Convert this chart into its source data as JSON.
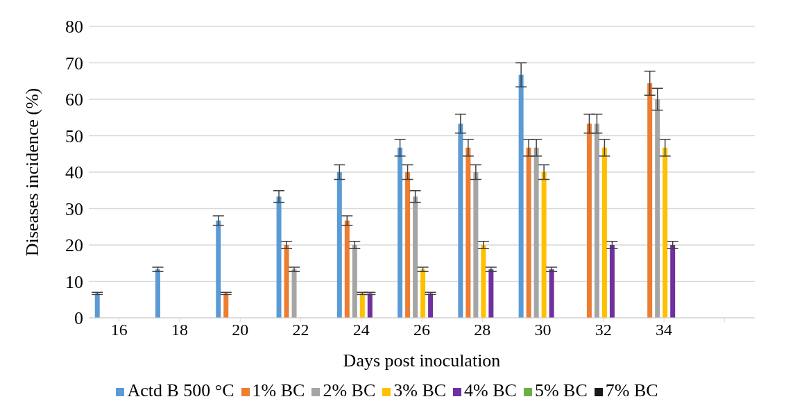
{
  "chart_data": {
    "type": "bar",
    "xlabel": "Days post inoculation",
    "ylabel": "Diseases incidence (%)",
    "categories": [
      "16",
      "18",
      "20",
      "22",
      "24",
      "26",
      "28",
      "30",
      "32",
      "34",
      null
    ],
    "series": [
      {
        "name": "Actd B 500 °C",
        "color": "#5b9bd5",
        "values": [
          6.7,
          13.3,
          26.7,
          33.3,
          40,
          46.7,
          53.3,
          66.7,
          0,
          0,
          0
        ],
        "errors": [
          0.3,
          0.6,
          1.3,
          1.6,
          2,
          2.3,
          2.6,
          3.3,
          null,
          null,
          null
        ]
      },
      {
        "name": "1% BC",
        "color": "#ed7d31",
        "values": [
          0,
          0,
          6.7,
          20,
          26.7,
          40,
          46.7,
          46.7,
          53.3,
          64.4,
          0
        ],
        "errors": [
          null,
          null,
          0.3,
          1,
          1.3,
          2,
          2.3,
          2.3,
          2.6,
          3.3,
          null
        ]
      },
      {
        "name": "2% BC",
        "color": "#a5a5a5",
        "values": [
          0,
          0,
          0,
          13.3,
          20,
          33.3,
          40,
          46.7,
          53.3,
          60,
          0
        ],
        "errors": [
          null,
          null,
          null,
          0.6,
          1,
          1.6,
          2,
          2.3,
          2.6,
          3,
          null
        ]
      },
      {
        "name": "3% BC",
        "color": "#ffc000",
        "values": [
          0,
          0,
          0,
          0,
          6.7,
          13.3,
          20,
          40,
          46.7,
          46.7,
          0
        ],
        "errors": [
          null,
          null,
          null,
          null,
          0.3,
          0.6,
          1,
          2,
          2.3,
          2.3,
          null
        ]
      },
      {
        "name": "4% BC",
        "color": "#7030a0",
        "values": [
          0,
          0,
          0,
          0,
          6.7,
          6.7,
          13.3,
          13.3,
          20,
          20,
          0
        ],
        "errors": [
          null,
          null,
          null,
          null,
          0.3,
          0.3,
          0.6,
          0.6,
          1,
          1,
          null
        ]
      },
      {
        "name": "5% BC",
        "color": "#70ad47",
        "values": [
          0,
          0,
          0,
          0,
          0,
          0,
          0,
          0,
          0,
          0,
          0
        ]
      },
      {
        "name": "7% BC",
        "color": "#1a1a1a",
        "values": [
          0,
          0,
          0,
          0,
          0,
          0,
          0,
          0,
          0,
          0,
          0
        ]
      }
    ],
    "ylim": [
      0,
      80
    ],
    "yticks": [
      0,
      10,
      20,
      30,
      40,
      50,
      60,
      70,
      80
    ],
    "grid": "y",
    "legend": "bottom"
  }
}
